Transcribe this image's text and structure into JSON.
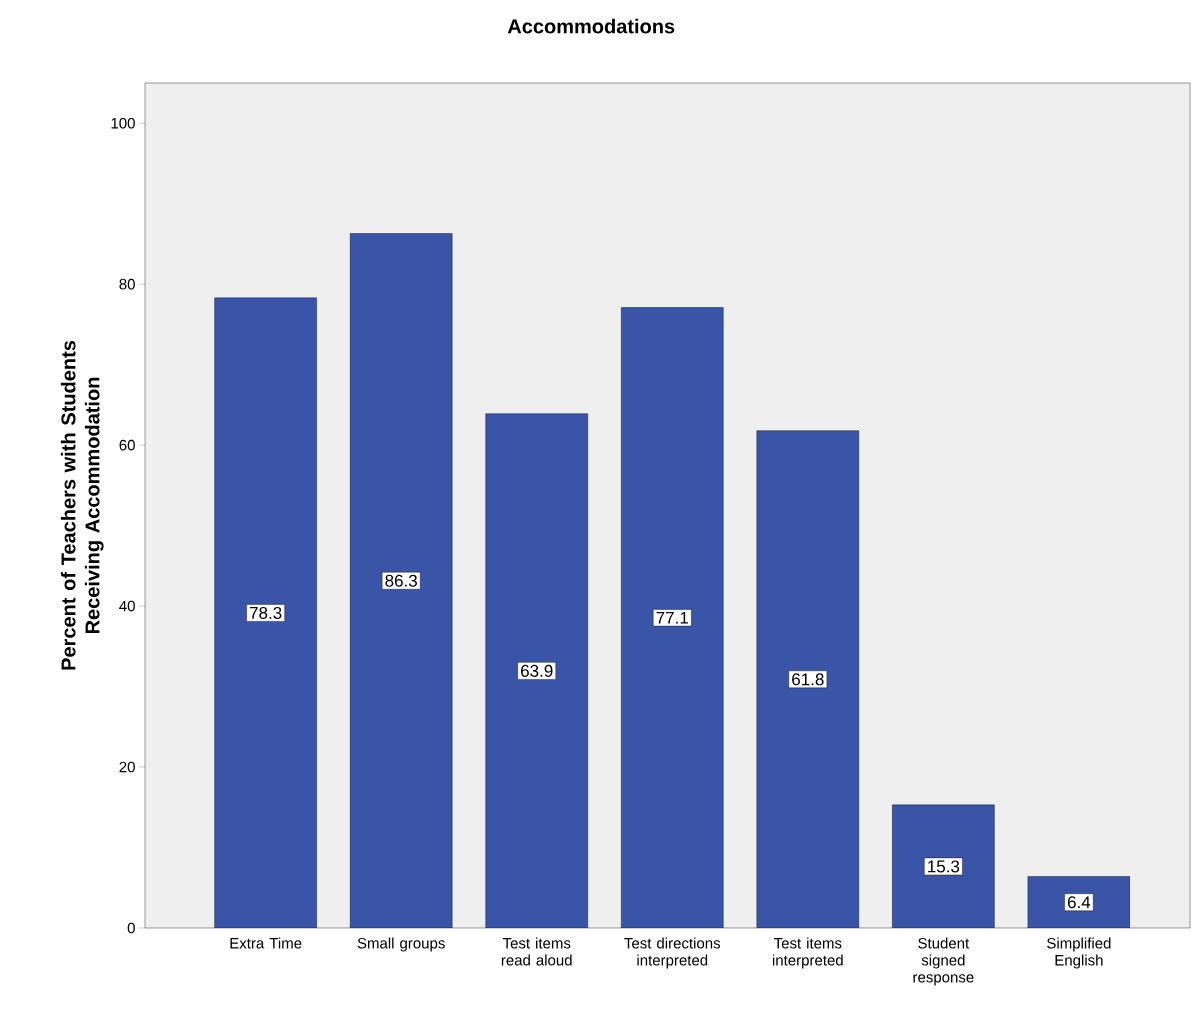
{
  "chart_data": {
    "type": "bar",
    "title": "Accommodations",
    "ylabel": "Percent of Teachers with Students Receiving Accommodation",
    "categories": [
      "Extra Time",
      "Small groups",
      "Test items read aloud",
      "Test directions interpreted",
      "Test items interpreted",
      "Student signed response",
      "Simplified English"
    ],
    "values": [
      78.3,
      86.3,
      63.9,
      77.1,
      61.8,
      15.3,
      6.4
    ],
    "color": "#3a55a8",
    "ylim": [
      0,
      105
    ],
    "yticks": [
      0,
      20,
      40,
      60,
      80,
      100
    ],
    "data_labels": true
  }
}
